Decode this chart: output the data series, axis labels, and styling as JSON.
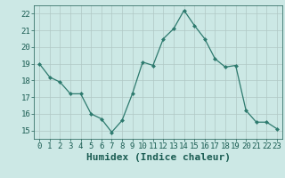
{
  "x": [
    0,
    1,
    2,
    3,
    4,
    5,
    6,
    7,
    8,
    9,
    10,
    11,
    12,
    13,
    14,
    15,
    16,
    17,
    18,
    19,
    20,
    21,
    22,
    23
  ],
  "y": [
    19.0,
    18.2,
    17.9,
    17.2,
    17.2,
    16.0,
    15.7,
    14.9,
    15.6,
    17.2,
    19.1,
    18.9,
    20.5,
    21.1,
    22.2,
    21.3,
    20.5,
    19.3,
    18.8,
    18.9,
    16.2,
    15.5,
    15.5,
    15.1
  ],
  "line_color": "#2d7a6e",
  "marker": "D",
  "marker_size": 2,
  "bg_color": "#cce8e5",
  "grid_color": "#b0c8c4",
  "xlabel": "Humidex (Indice chaleur)",
  "xlabel_fontsize": 8,
  "xlabel_color": "#1a5c52",
  "yticks": [
    15,
    16,
    17,
    18,
    19,
    20,
    21,
    22
  ],
  "xticks": [
    0,
    1,
    2,
    3,
    4,
    5,
    6,
    7,
    8,
    9,
    10,
    11,
    12,
    13,
    14,
    15,
    16,
    17,
    18,
    19,
    20,
    21,
    22,
    23
  ],
  "xlim": [
    -0.5,
    23.5
  ],
  "ylim": [
    14.5,
    22.5
  ],
  "tick_fontsize": 6.5,
  "tick_color": "#1a5c52"
}
